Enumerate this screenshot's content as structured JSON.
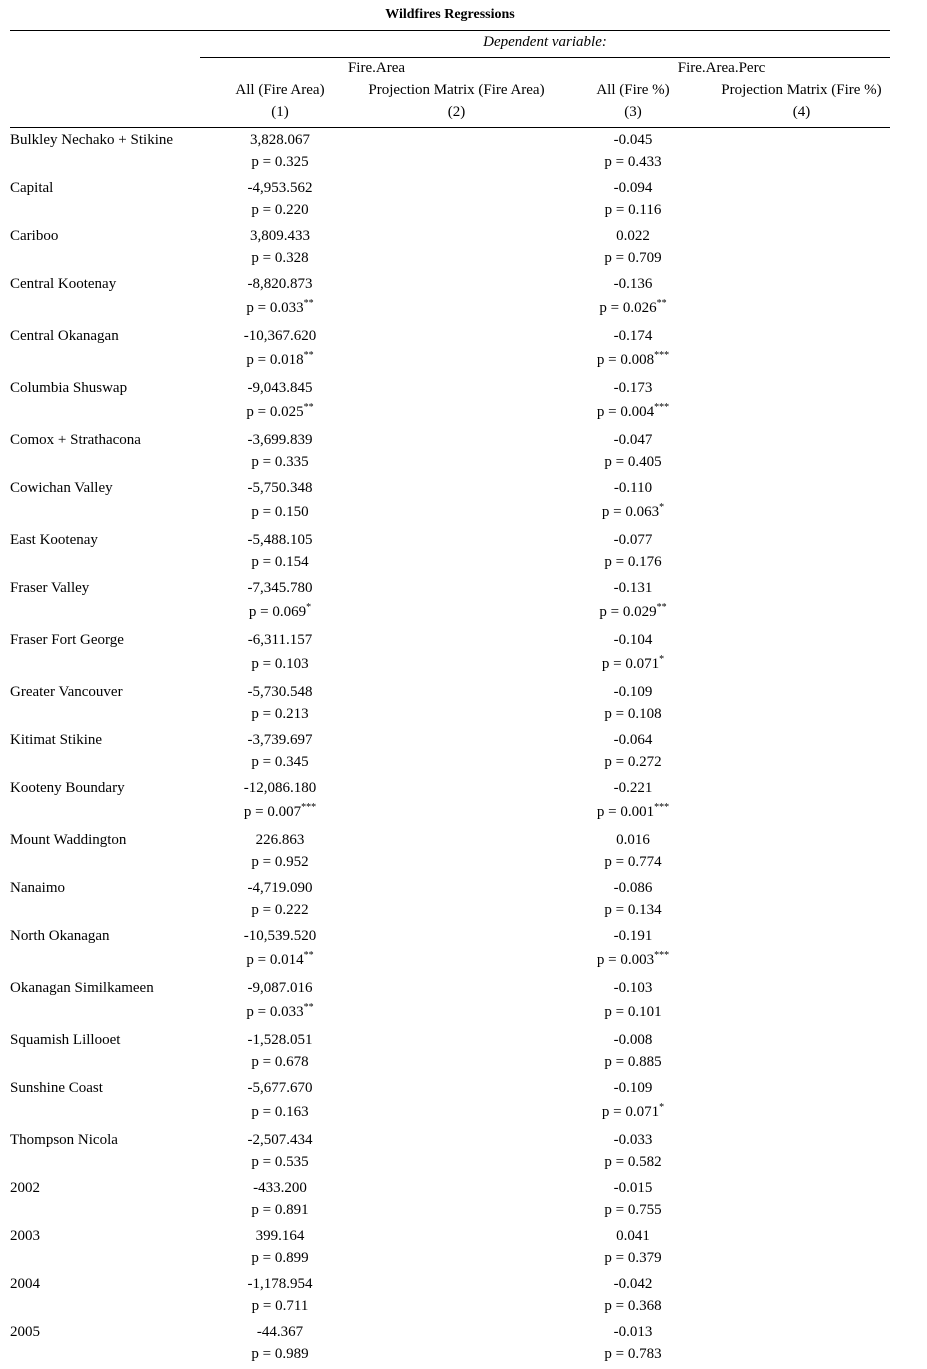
{
  "table": {
    "title": "Wildfires Regressions",
    "dependent_variable_label": "Dependent variable:",
    "groups": [
      "Fire.Area",
      "Fire.Area.Perc"
    ],
    "columns": [
      {
        "label": "All (Fire Area)",
        "number": "(1)"
      },
      {
        "label": "Projection Matrix (Fire Area)",
        "number": "(2)"
      },
      {
        "label": "All (Fire %)",
        "number": "(3)"
      },
      {
        "label": "Projection Matrix (Fire %)",
        "number": "(4)"
      }
    ],
    "rows": [
      {
        "label": "Bulkley Nechako + Stikine",
        "c1": "3,828.067",
        "p1": "p = 0.325",
        "s1": "",
        "c3": "-0.045",
        "p3": "p = 0.433",
        "s3": ""
      },
      {
        "label": "Capital",
        "c1": "-4,953.562",
        "p1": "p = 0.220",
        "s1": "",
        "c3": "-0.094",
        "p3": "p = 0.116",
        "s3": ""
      },
      {
        "label": "Cariboo",
        "c1": "3,809.433",
        "p1": "p = 0.328",
        "s1": "",
        "c3": "0.022",
        "p3": "p = 0.709",
        "s3": ""
      },
      {
        "label": "Central Kootenay",
        "c1": "-8,820.873",
        "p1": "p = 0.033",
        "s1": "**",
        "c3": "-0.136",
        "p3": "p = 0.026",
        "s3": "**"
      },
      {
        "label": "Central Okanagan",
        "c1": "-10,367.620",
        "p1": "p = 0.018",
        "s1": "**",
        "c3": "-0.174",
        "p3": "p = 0.008",
        "s3": "***"
      },
      {
        "label": "Columbia Shuswap",
        "c1": "-9,043.845",
        "p1": "p = 0.025",
        "s1": "**",
        "c3": "-0.173",
        "p3": "p = 0.004",
        "s3": "***"
      },
      {
        "label": "Comox + Strathacona",
        "c1": "-3,699.839",
        "p1": "p = 0.335",
        "s1": "",
        "c3": "-0.047",
        "p3": "p = 0.405",
        "s3": ""
      },
      {
        "label": "Cowichan Valley",
        "c1": "-5,750.348",
        "p1": "p = 0.150",
        "s1": "",
        "c3": "-0.110",
        "p3": "p = 0.063",
        "s3": "*"
      },
      {
        "label": "East Kootenay",
        "c1": "-5,488.105",
        "p1": "p = 0.154",
        "s1": "",
        "c3": "-0.077",
        "p3": "p = 0.176",
        "s3": ""
      },
      {
        "label": "Fraser Valley",
        "c1": "-7,345.780",
        "p1": "p = 0.069",
        "s1": "*",
        "c3": "-0.131",
        "p3": "p = 0.029",
        "s3": "**"
      },
      {
        "label": "Fraser Fort George",
        "c1": "-6,311.157",
        "p1": "p = 0.103",
        "s1": "",
        "c3": "-0.104",
        "p3": "p = 0.071",
        "s3": "*"
      },
      {
        "label": "Greater Vancouver",
        "c1": "-5,730.548",
        "p1": "p = 0.213",
        "s1": "",
        "c3": "-0.109",
        "p3": "p = 0.108",
        "s3": ""
      },
      {
        "label": "Kitimat Stikine",
        "c1": "-3,739.697",
        "p1": "p = 0.345",
        "s1": "",
        "c3": "-0.064",
        "p3": "p = 0.272",
        "s3": ""
      },
      {
        "label": "Kooteny Boundary",
        "c1": "-12,086.180",
        "p1": "p = 0.007",
        "s1": "***",
        "c3": "-0.221",
        "p3": "p = 0.001",
        "s3": "***"
      },
      {
        "label": "Mount Waddington",
        "c1": "226.863",
        "p1": "p = 0.952",
        "s1": "",
        "c3": "0.016",
        "p3": "p = 0.774",
        "s3": ""
      },
      {
        "label": "Nanaimo",
        "c1": "-4,719.090",
        "p1": "p = 0.222",
        "s1": "",
        "c3": "-0.086",
        "p3": "p = 0.134",
        "s3": ""
      },
      {
        "label": "North Okanagan",
        "c1": "-10,539.520",
        "p1": "p = 0.014",
        "s1": "**",
        "c3": "-0.191",
        "p3": "p = 0.003",
        "s3": "***"
      },
      {
        "label": "Okanagan Similkameen",
        "c1": "-9,087.016",
        "p1": "p = 0.033",
        "s1": "**",
        "c3": "-0.103",
        "p3": "p = 0.101",
        "s3": ""
      },
      {
        "label": "Squamish Lillooet",
        "c1": "-1,528.051",
        "p1": "p = 0.678",
        "s1": "",
        "c3": "-0.008",
        "p3": "p = 0.885",
        "s3": ""
      },
      {
        "label": "Sunshine Coast",
        "c1": "-5,677.670",
        "p1": "p = 0.163",
        "s1": "",
        "c3": "-0.109",
        "p3": "p = 0.071",
        "s3": "*"
      },
      {
        "label": "Thompson Nicola",
        "c1": "-2,507.434",
        "p1": "p = 0.535",
        "s1": "",
        "c3": "-0.033",
        "p3": "p = 0.582",
        "s3": ""
      },
      {
        "label": "2002",
        "c1": "-433.200",
        "p1": "p = 0.891",
        "s1": "",
        "c3": "-0.015",
        "p3": "p = 0.755",
        "s3": ""
      },
      {
        "label": "2003",
        "c1": "399.164",
        "p1": "p = 0.899",
        "s1": "",
        "c3": "0.041",
        "p3": "p = 0.379",
        "s3": ""
      },
      {
        "label": "2004",
        "c1": "-1,178.954",
        "p1": "p = 0.711",
        "s1": "",
        "c3": "-0.042",
        "p3": "p = 0.368",
        "s3": ""
      },
      {
        "label": "2005",
        "c1": "-44.367",
        "p1": "p = 0.989",
        "s1": "",
        "c3": "-0.013",
        "p3": "p = 0.783",
        "s3": ""
      }
    ]
  }
}
